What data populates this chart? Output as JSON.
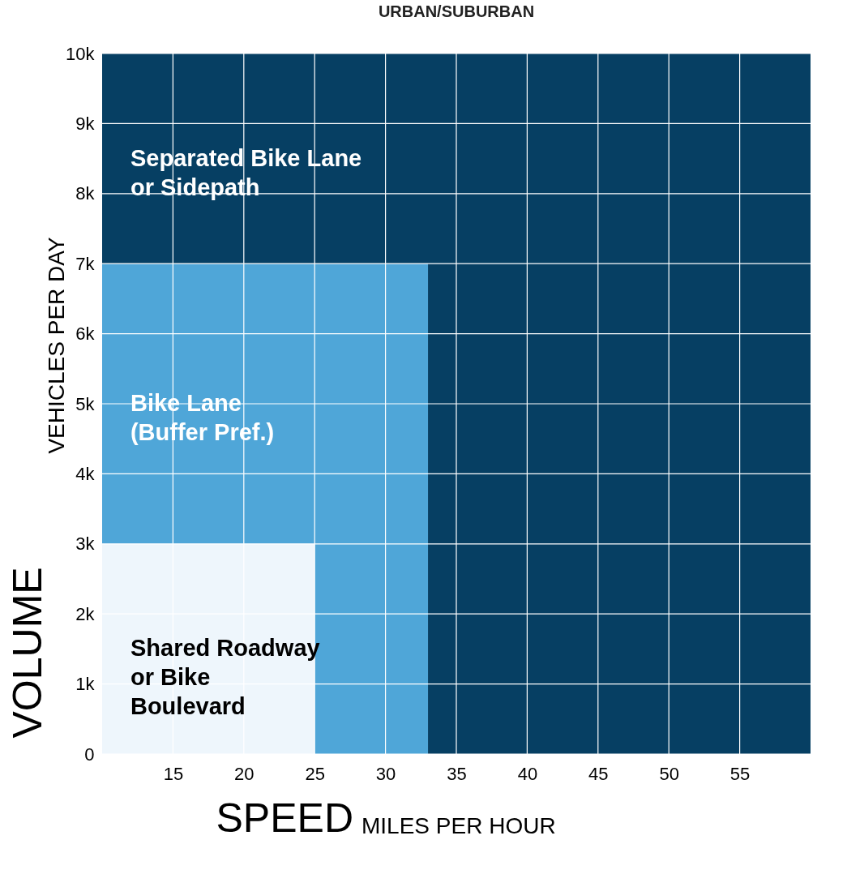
{
  "chart_data": {
    "type": "area",
    "stacked": true,
    "title": "URBAN/SUBURBAN",
    "xlabel": "SPEED",
    "ylabel": "VOLUME",
    "annotations": [
      "MILES PER HOUR",
      "VEHICLES PER DAY"
    ],
    "x": [
      10,
      25,
      25,
      33,
      33,
      60
    ],
    "xlim": [
      10,
      60
    ],
    "xticks": [
      15,
      20,
      25,
      30,
      35,
      40,
      45,
      50,
      55
    ],
    "ylim": [
      0,
      10000
    ],
    "yticks": [
      0,
      {
        "value": 1000,
        "label": "1k"
      },
      {
        "value": 2000,
        "label": "2k"
      },
      {
        "value": 3000,
        "label": "3k"
      },
      {
        "value": 4000,
        "label": "4k"
      },
      {
        "value": 5000,
        "label": "5k"
      },
      {
        "value": 6000,
        "label": "6k"
      },
      {
        "value": 7000,
        "label": "7k"
      },
      {
        "value": 8000,
        "label": "8k"
      },
      {
        "value": 9000,
        "label": "9k"
      },
      {
        "value": 10000,
        "label": "10k"
      }
    ],
    "grid": true,
    "legend": false,
    "series": [
      {
        "name": "Shared Roadway\nor Bike\nBoulevard",
        "color": "#eef6fc",
        "values": [
          3000,
          3000,
          0,
          0,
          0,
          0
        ]
      },
      {
        "name": "Bike Lane\n(Buffer Pref.)",
        "color": "#4fa6d8",
        "values": [
          4000,
          4000,
          7000,
          7000,
          0,
          0
        ]
      },
      {
        "name": "Separated Bike Lane\nor Sidepath",
        "color": "#063f63",
        "values": [
          3000,
          3000,
          3000,
          3000,
          10000,
          10000
        ]
      }
    ]
  }
}
